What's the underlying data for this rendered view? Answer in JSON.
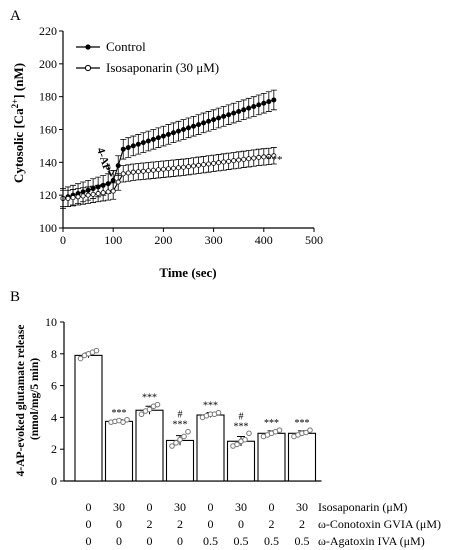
{
  "chart_data": [
    {
      "panel": "A",
      "type": "line",
      "xlabel": "Time (sec)",
      "ylabel": "Cytosolic [Ca2+] (nM)",
      "xlim": [
        0,
        500
      ],
      "ylim": [
        100,
        220
      ],
      "xticks": [
        0,
        100,
        200,
        300,
        400,
        500
      ],
      "yticks": [
        100,
        120,
        140,
        160,
        180,
        200,
        220
      ],
      "annotation": "4-AP",
      "significance_label": "***",
      "legend_position": "top-left",
      "series": [
        {
          "name": "Control",
          "marker": "filled-circle",
          "x": [
            0,
            10,
            20,
            30,
            40,
            50,
            60,
            70,
            80,
            90,
            100,
            110,
            120,
            130,
            140,
            150,
            160,
            170,
            180,
            190,
            200,
            210,
            220,
            230,
            240,
            250,
            260,
            270,
            280,
            290,
            300,
            310,
            320,
            330,
            340,
            350,
            360,
            370,
            380,
            390,
            400,
            410,
            420
          ],
          "y": [
            118,
            119,
            120,
            121,
            122,
            123,
            124,
            125,
            126,
            127,
            129,
            138,
            148,
            149,
            150,
            151,
            152,
            153,
            154,
            155,
            156,
            157,
            158,
            159,
            160,
            161,
            162,
            163,
            164,
            165,
            166,
            167,
            168,
            169,
            170,
            171,
            172,
            173,
            174,
            175,
            176,
            177,
            178
          ],
          "error": 6
        },
        {
          "name": "Isosaponarin (30 μM)",
          "marker": "open-circle",
          "x": [
            0,
            10,
            20,
            30,
            40,
            50,
            60,
            70,
            80,
            90,
            100,
            110,
            120,
            130,
            140,
            150,
            160,
            170,
            180,
            190,
            200,
            210,
            220,
            230,
            240,
            250,
            260,
            270,
            280,
            290,
            300,
            310,
            320,
            330,
            340,
            350,
            360,
            370,
            380,
            390,
            400,
            410,
            420
          ],
          "y": [
            118,
            118,
            118.5,
            119,
            119.5,
            120,
            120.5,
            121,
            121.5,
            122,
            122.5,
            128,
            133,
            133.5,
            134,
            134.3,
            134.6,
            134.9,
            135.2,
            135.5,
            135.8,
            136.1,
            136.4,
            136.7,
            137,
            137.4,
            137.8,
            138.2,
            138.6,
            139,
            139.4,
            139.8,
            140.2,
            140.6,
            141,
            141.4,
            141.8,
            142.2,
            142.6,
            143,
            143.3,
            143.6,
            144
          ],
          "error": 5
        }
      ]
    },
    {
      "panel": "B",
      "type": "bar",
      "ylabel": "4-AP-evoked glutamate release (nmol/mg/5 min)",
      "ylim": [
        0,
        10
      ],
      "yticks": [
        0,
        2,
        4,
        6,
        8,
        10
      ],
      "values": [
        7.9,
        3.75,
        4.45,
        2.55,
        4.15,
        2.5,
        3.0,
        3.0
      ],
      "sem": [
        0.15,
        0.1,
        0.25,
        0.3,
        0.15,
        0.3,
        0.15,
        0.15
      ],
      "points": [
        [
          7.7,
          7.9,
          8.0,
          8.1,
          8.2
        ],
        [
          3.7,
          3.75,
          3.8,
          3.7,
          3.85
        ],
        [
          4.2,
          4.4,
          4.5,
          4.7,
          4.8
        ],
        [
          2.2,
          2.4,
          2.6,
          2.8,
          3.1
        ],
        [
          4.0,
          4.1,
          4.2,
          4.2,
          4.3
        ],
        [
          2.2,
          2.3,
          2.5,
          2.6,
          3.0
        ],
        [
          2.8,
          2.9,
          3.0,
          3.1,
          3.2
        ],
        [
          2.8,
          2.9,
          3.0,
          3.05,
          3.2
        ]
      ],
      "marks_top": [
        "",
        "***",
        "***",
        "#",
        "***",
        "#",
        "***",
        "***"
      ],
      "marks_bottom": [
        "",
        "",
        "",
        "***",
        "",
        "***",
        "",
        ""
      ],
      "table": {
        "rows": [
          {
            "label": "Isosaponarin (μM)",
            "values": [
              "0",
              "30",
              "0",
              "30",
              "0",
              "30",
              "0",
              "30"
            ]
          },
          {
            "label": "ω-Conotoxin GVIA (μM)",
            "values": [
              "0",
              "0",
              "2",
              "2",
              "0",
              "0",
              "2",
              "2"
            ]
          },
          {
            "label": "ω-Agatoxin IVA (μM)",
            "values": [
              "0",
              "0",
              "0",
              "0",
              "0.5",
              "0.5",
              "0.5",
              "0.5"
            ]
          }
        ]
      }
    }
  ],
  "colors": {
    "ink": "#000000",
    "bar_fill": "#ffffff",
    "point": "#777777"
  }
}
